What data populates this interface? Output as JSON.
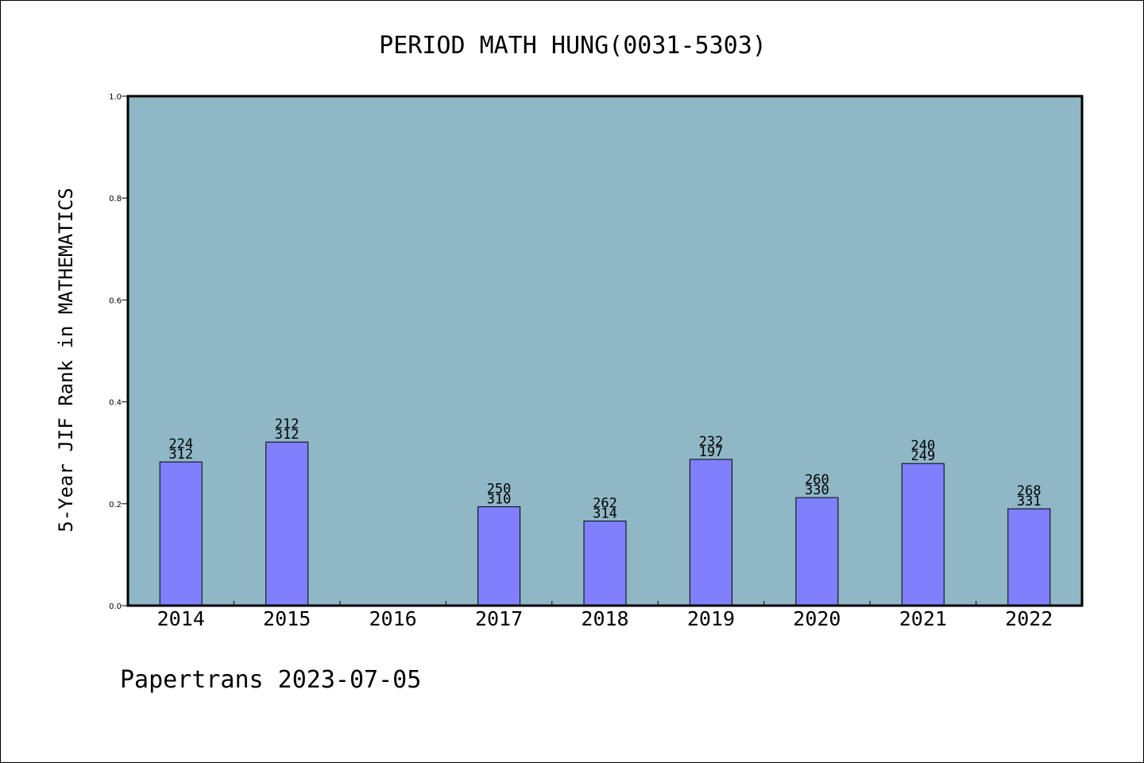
{
  "chart_data": {
    "type": "bar",
    "title": "PERIOD MATH HUNG(0031-5303)",
    "xlabel": "",
    "ylabel": "5-Year JIF Rank in MATHEMATICS",
    "categories": [
      "2014",
      "2015",
      "2016",
      "2017",
      "2018",
      "2019",
      "2020",
      "2021",
      "2022"
    ],
    "values": [
      0.282,
      0.321,
      null,
      0.194,
      0.166,
      0.287,
      0.212,
      0.279,
      0.19
    ],
    "labels_top": [
      "224",
      "212",
      "",
      "250",
      "262",
      "232",
      "260",
      "240",
      "268"
    ],
    "labels_bottom": [
      "312",
      "312",
      "",
      "310",
      "314",
      "197",
      "330",
      "249",
      "331"
    ],
    "ylim": [
      0,
      1.0
    ],
    "yticks": [
      "0.0",
      "0.2",
      "0.4",
      "0.6",
      "0.8",
      "1.0"
    ],
    "grid": false,
    "colors": {
      "plot_bg": "#8fb7c5",
      "bar": "#8080ff",
      "bar_edge": "#000000"
    }
  },
  "footer": {
    "credit": "Papertrans 2023-07-05"
  }
}
